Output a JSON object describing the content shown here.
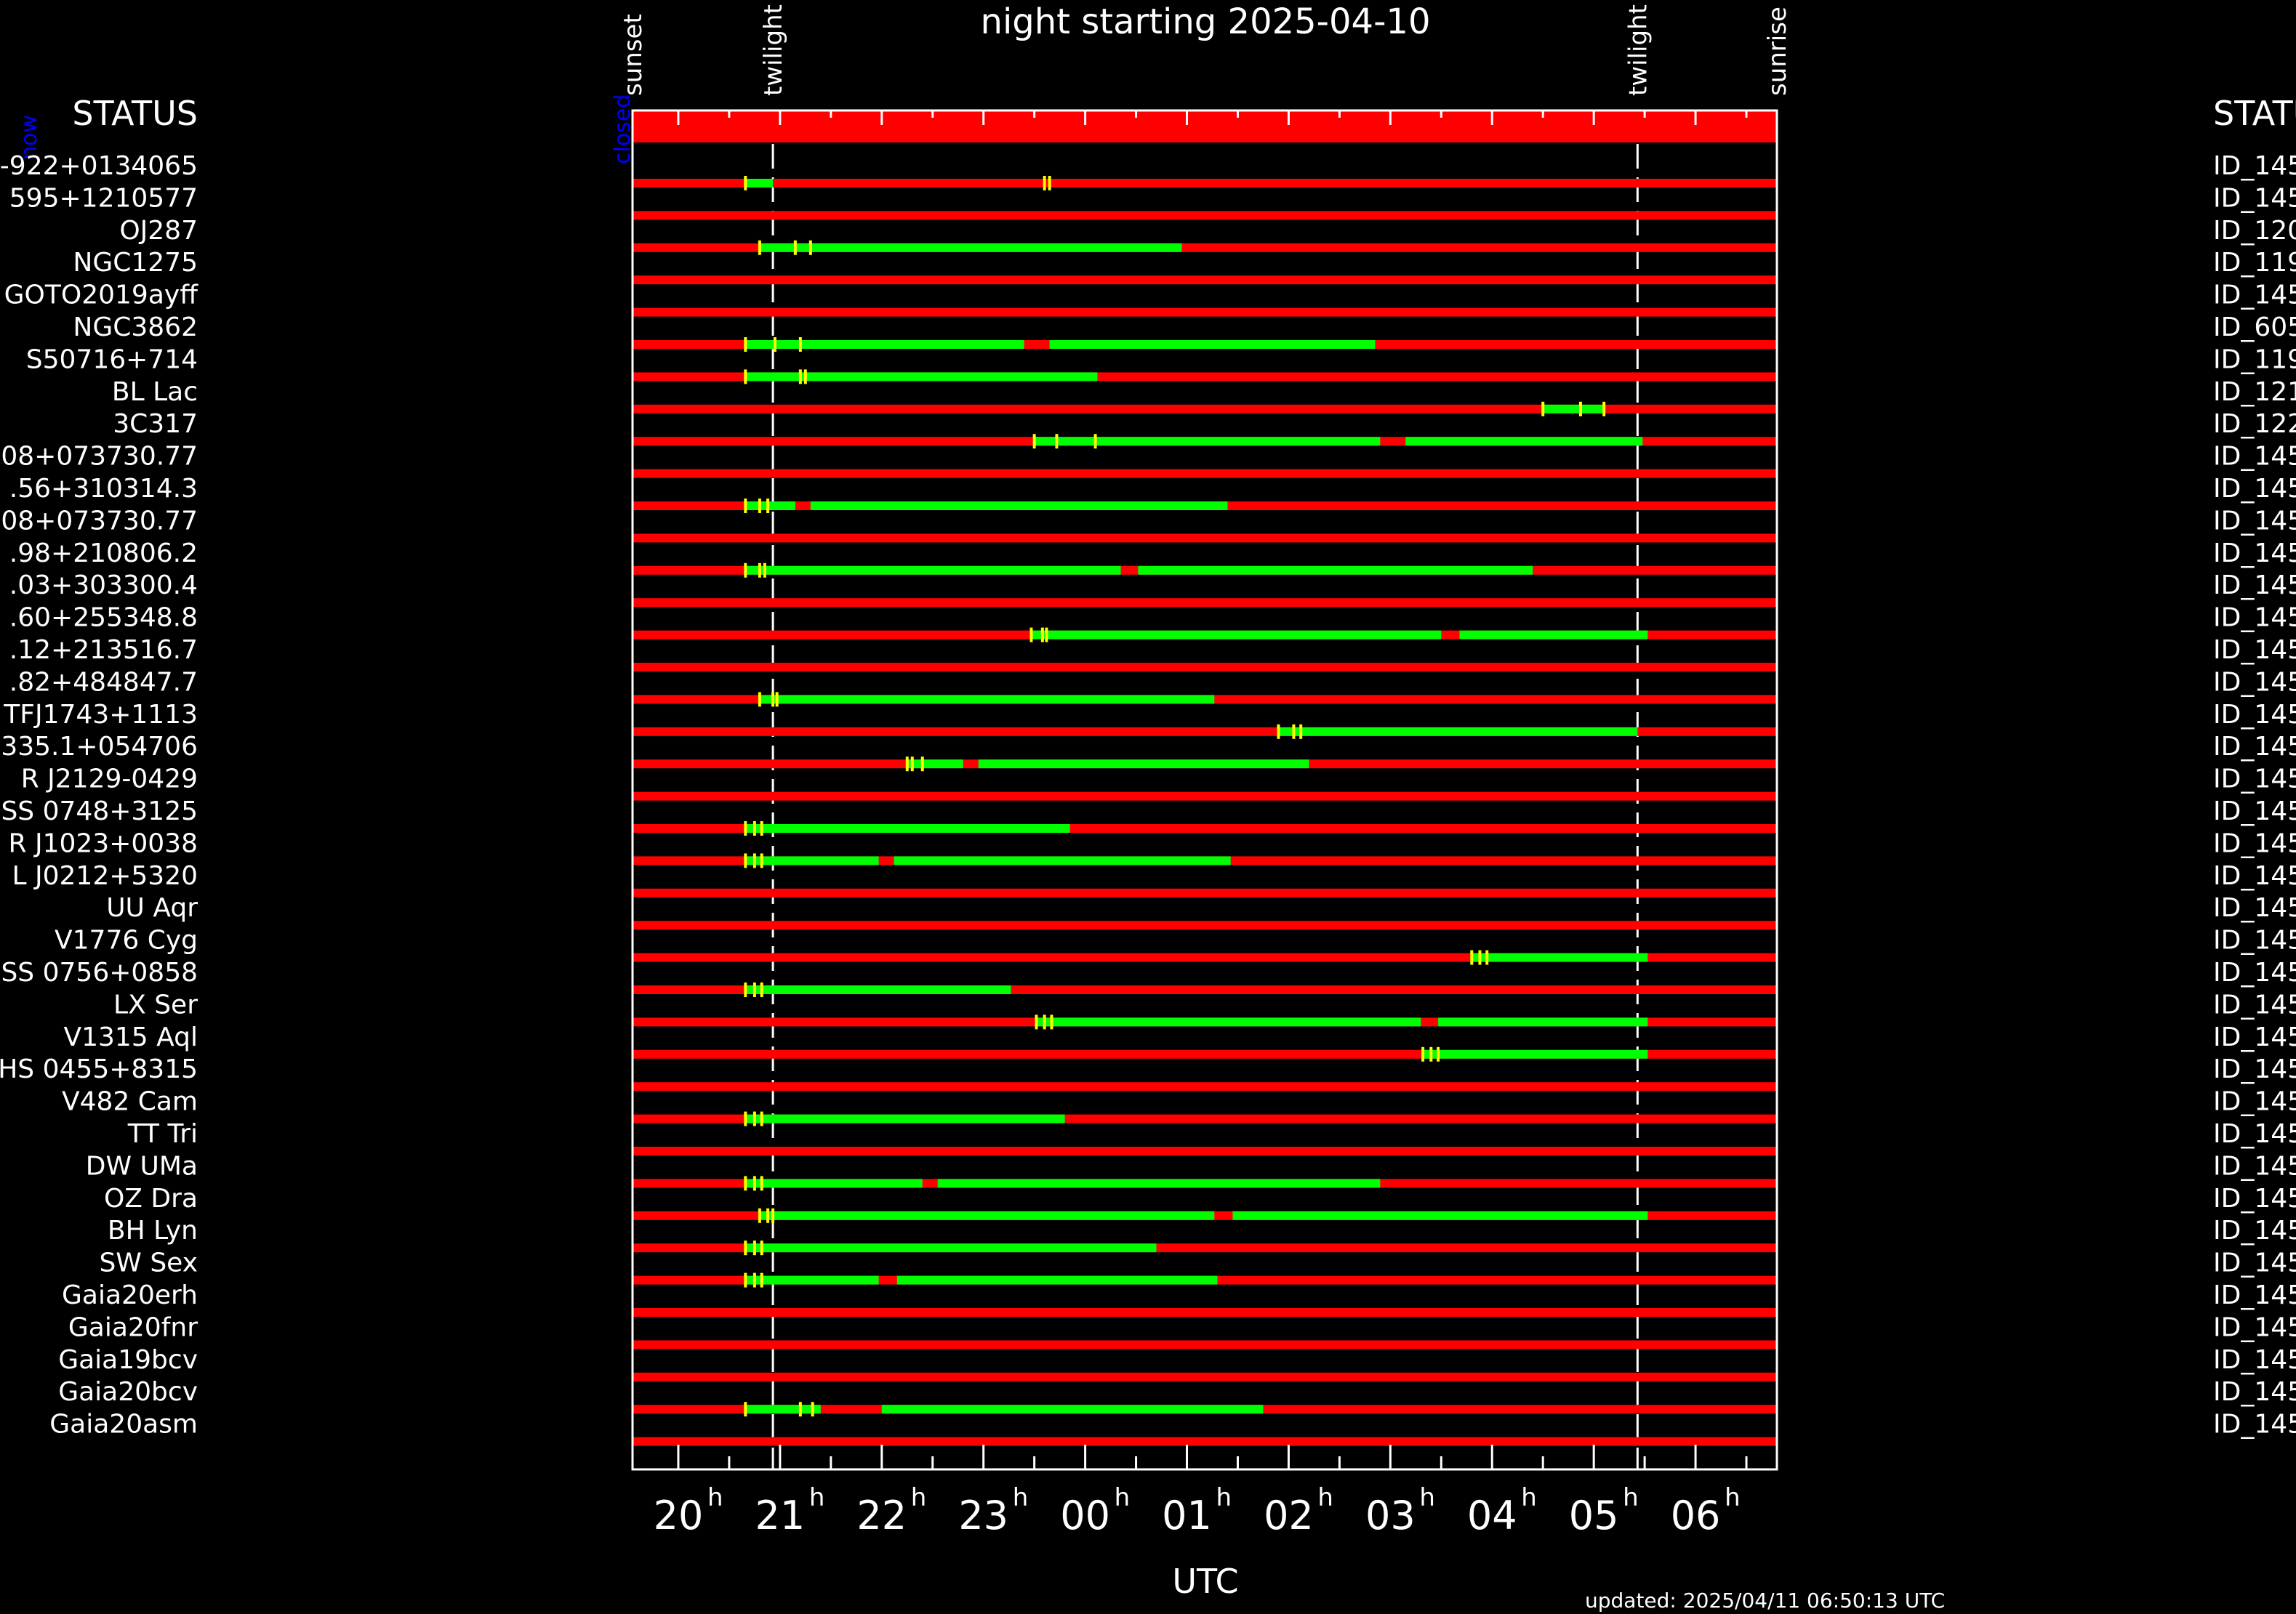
{
  "chart_data": {
    "type": "timeline",
    "title": "night starting 2025-04-10",
    "xlabel": "UTC",
    "updated": "updated: 2025/04/11 06:50:13 UTC",
    "xlim_hours": [
      19.55,
      30.8
    ],
    "tick_hours": [
      20,
      21,
      22,
      23,
      24,
      25,
      26,
      27,
      28,
      29,
      30
    ],
    "tick_labels": [
      "20",
      "21",
      "22",
      "23",
      "00",
      "01",
      "02",
      "03",
      "04",
      "05",
      "06"
    ],
    "tick_suffix": "h",
    "events": [
      {
        "label": "sunset",
        "hour": 19.55,
        "line": false
      },
      {
        "label": "twilight",
        "hour": 20.93,
        "line": true
      },
      {
        "label": "twilight",
        "hour": 29.43,
        "line": true
      },
      {
        "label": "sunrise",
        "hour": 30.8,
        "line": false
      }
    ],
    "now_label": "now",
    "now_hour": 19.55,
    "status_bar_label": "closed",
    "status_bar_color": "#ff0000",
    "left_header": "STATUS",
    "right_header": "STATUS",
    "colors": {
      "observable": "#00ff00",
      "unobservable": "#ff0000",
      "marker": "#ffff00",
      "axis": "#ffffff",
      "now": "#0000ff"
    },
    "targets": [
      {
        "name": "-922+0134065",
        "id": "ID_145",
        "green": [
          [
            20.66,
            20.93
          ]
        ],
        "marks": [
          20.66,
          23.6,
          23.65
        ]
      },
      {
        "name": "595+1210577",
        "id": "ID_145",
        "green": [],
        "marks": []
      },
      {
        "name": "OJ287",
        "id": "ID_120",
        "green": [
          [
            20.8,
            24.95
          ]
        ],
        "marks": [
          20.8,
          21.15,
          21.3
        ]
      },
      {
        "name": "NGC1275",
        "id": "ID_119",
        "green": [],
        "marks": []
      },
      {
        "name": "GOTO2019ayff",
        "id": "ID_145",
        "green": [],
        "marks": []
      },
      {
        "name": "NGC3862",
        "id": "ID_605",
        "green": [
          [
            20.66,
            23.4
          ],
          [
            23.65,
            26.85
          ]
        ],
        "marks": [
          20.66,
          20.95,
          21.2
        ]
      },
      {
        "name": "S50716+714",
        "id": "ID_119",
        "green": [
          [
            20.66,
            24.12
          ]
        ],
        "marks": [
          20.66,
          21.2,
          21.25
        ]
      },
      {
        "name": "BL Lac",
        "id": "ID_121",
        "green": [
          [
            28.5,
            29.1
          ]
        ],
        "marks": [
          28.5,
          28.87,
          29.1
        ]
      },
      {
        "name": "3C317",
        "id": "ID_122",
        "green": [
          [
            23.5,
            26.9
          ],
          [
            27.15,
            29.48
          ]
        ],
        "marks": [
          23.5,
          23.72,
          24.1
        ]
      },
      {
        "name": "08+073730.77",
        "id": "ID_145",
        "green": [],
        "marks": []
      },
      {
        "name": ".56+310314.3",
        "id": "ID_145",
        "green": [
          [
            20.66,
            21.15
          ],
          [
            21.3,
            25.4
          ]
        ],
        "marks": [
          20.66,
          20.8,
          20.88
        ]
      },
      {
        "name": "08+073730.77",
        "id": "ID_145",
        "green": [],
        "marks": []
      },
      {
        "name": ".98+210806.2",
        "id": "ID_145",
        "green": [
          [
            20.66,
            24.35
          ],
          [
            24.52,
            28.4
          ]
        ],
        "marks": [
          20.66,
          20.8,
          20.85
        ]
      },
      {
        "name": ".03+303300.4",
        "id": "ID_145",
        "green": [],
        "marks": []
      },
      {
        "name": ".60+255348.8",
        "id": "ID_145",
        "green": [
          [
            23.47,
            27.5
          ],
          [
            27.68,
            29.53
          ]
        ],
        "marks": [
          23.47,
          23.58,
          23.62
        ]
      },
      {
        "name": ".12+213516.7",
        "id": "ID_145",
        "green": [],
        "marks": []
      },
      {
        "name": ".82+484847.7",
        "id": "ID_145",
        "green": [
          [
            20.8,
            25.27
          ]
        ],
        "marks": [
          20.8,
          20.93,
          20.97
        ]
      },
      {
        "name": "TFJ1743+1113",
        "id": "ID_145",
        "green": [
          [
            25.9,
            29.43
          ]
        ],
        "marks": [
          25.9,
          26.05,
          26.12
        ]
      },
      {
        "name": "335.1+054706",
        "id": "ID_145",
        "green": [
          [
            22.25,
            22.8
          ],
          [
            22.95,
            26.2
          ]
        ],
        "marks": [
          22.25,
          22.3,
          22.4
        ]
      },
      {
        "name": "R J2129-0429",
        "id": "ID_145",
        "green": [],
        "marks": []
      },
      {
        "name": "SS 0748+3125",
        "id": "ID_145",
        "green": [
          [
            20.66,
            23.85
          ]
        ],
        "marks": [
          20.66,
          20.75,
          20.82
        ]
      },
      {
        "name": "R J1023+0038",
        "id": "ID_145",
        "green": [
          [
            20.66,
            21.97
          ],
          [
            22.12,
            25.43
          ]
        ],
        "marks": [
          20.66,
          20.75,
          20.82
        ]
      },
      {
        "name": "L J0212+5320",
        "id": "ID_145",
        "green": [],
        "marks": []
      },
      {
        "name": "UU Aqr",
        "id": "ID_145",
        "green": [],
        "marks": []
      },
      {
        "name": "V1776 Cyg",
        "id": "ID_145",
        "green": [
          [
            27.8,
            29.53
          ]
        ],
        "marks": [
          27.8,
          27.88,
          27.95
        ]
      },
      {
        "name": "SS 0756+0858",
        "id": "ID_145",
        "green": [
          [
            20.66,
            23.27
          ]
        ],
        "marks": [
          20.66,
          20.75,
          20.82
        ]
      },
      {
        "name": "LX Ser",
        "id": "ID_145",
        "green": [
          [
            23.52,
            27.3
          ],
          [
            27.47,
            29.53
          ]
        ],
        "marks": [
          23.52,
          23.6,
          23.67
        ]
      },
      {
        "name": "V1315 Aql",
        "id": "ID_145",
        "green": [
          [
            27.32,
            29.53
          ]
        ],
        "marks": [
          27.32,
          27.4,
          27.47
        ]
      },
      {
        "name": "HS 0455+8315",
        "id": "ID_145",
        "green": [],
        "marks": []
      },
      {
        "name": "V482 Cam",
        "id": "ID_145",
        "green": [
          [
            20.66,
            23.8
          ]
        ],
        "marks": [
          20.66,
          20.75,
          20.82
        ]
      },
      {
        "name": "TT Tri",
        "id": "ID_145",
        "green": [],
        "marks": []
      },
      {
        "name": "DW UMa",
        "id": "ID_145",
        "green": [
          [
            20.66,
            22.4
          ],
          [
            22.55,
            26.9
          ]
        ],
        "marks": [
          20.66,
          20.75,
          20.82
        ]
      },
      {
        "name": "OZ Dra",
        "id": "ID_145",
        "green": [
          [
            20.8,
            25.27
          ],
          [
            25.45,
            29.53
          ]
        ],
        "marks": [
          20.8,
          20.88,
          20.93
        ]
      },
      {
        "name": "BH Lyn",
        "id": "ID_145",
        "green": [
          [
            20.66,
            24.7
          ]
        ],
        "marks": [
          20.66,
          20.75,
          20.82
        ]
      },
      {
        "name": "SW Sex",
        "id": "ID_145",
        "green": [
          [
            20.66,
            21.97
          ],
          [
            22.15,
            25.3
          ]
        ],
        "marks": [
          20.66,
          20.75,
          20.82
        ]
      },
      {
        "name": "Gaia20erh",
        "id": "ID_145",
        "green": [],
        "marks": []
      },
      {
        "name": "Gaia20fnr",
        "id": "ID_145",
        "green": [],
        "marks": []
      },
      {
        "name": "Gaia19bcv",
        "id": "ID_145",
        "green": [],
        "marks": []
      },
      {
        "name": "Gaia20bcv",
        "id": "ID_145",
        "green": [
          [
            20.66,
            21.4
          ],
          [
            22.0,
            25.75
          ]
        ],
        "marks": [
          20.66,
          21.2,
          21.32
        ]
      },
      {
        "name": "Gaia20asm",
        "id": "ID_145",
        "green": [],
        "marks": []
      }
    ]
  }
}
